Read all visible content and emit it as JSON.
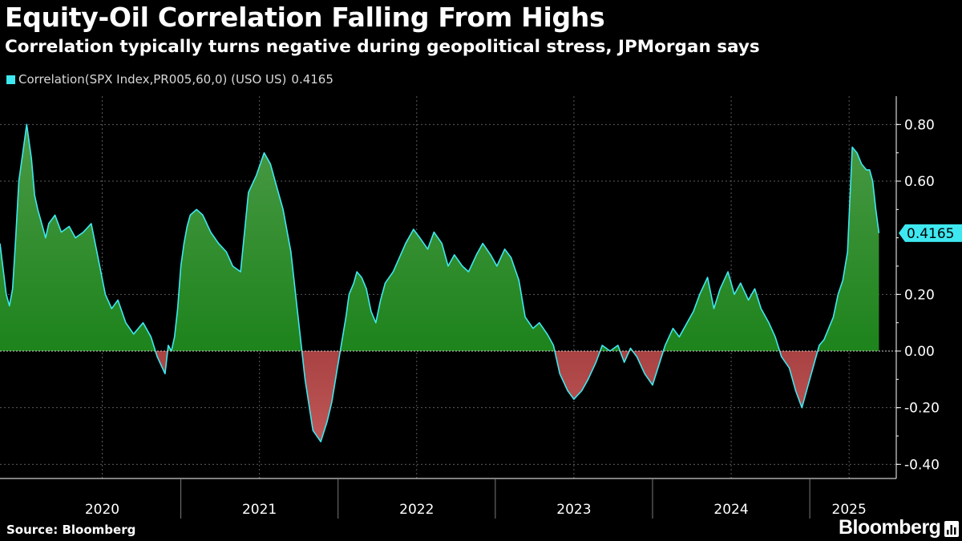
{
  "title": "Equity-Oil Correlation Falling From Highs",
  "subtitle": "Correlation typically turns negative during geopolitical stress, JPMorgan says",
  "legend": {
    "label": "Correlation(SPX Index,PR005,60,0) (USO US)",
    "value": "0.4165"
  },
  "source": "Source: Bloomberg",
  "brand": "Bloomberg",
  "colors": {
    "line": "#3ee8f0",
    "positive_fill_top": "#4b9a46",
    "positive_fill_bottom": "#0b7a0b",
    "negative_fill_top": "#6e0a0a",
    "negative_fill_bottom": "#c05858",
    "grid": "#5a5a5a",
    "axis": "#ffffff"
  },
  "chart_data": {
    "type": "area",
    "title": "Equity-Oil Correlation Falling From Highs",
    "series_name": "Correlation(SPX Index,PR005,60,0) (USO US)",
    "last_value": 0.4165,
    "last_value_label": "0.4165",
    "xlim": [
      2019.85,
      2025.55
    ],
    "ylim": [
      -0.45,
      0.9
    ],
    "x_ticks": [
      {
        "value": 2020.5,
        "label": "2020"
      },
      {
        "value": 2021.5,
        "label": "2021"
      },
      {
        "value": 2022.5,
        "label": "2022"
      },
      {
        "value": 2023.5,
        "label": "2023"
      },
      {
        "value": 2024.5,
        "label": "2024"
      },
      {
        "value": 2025.25,
        "label": "2025"
      }
    ],
    "x_dividers": [
      2021.0,
      2022.0,
      2023.0,
      2024.0,
      2025.0
    ],
    "y_ticks": [
      {
        "value": 0.8,
        "label": "0.80"
      },
      {
        "value": 0.6,
        "label": "0.60"
      },
      {
        "value": 0.2,
        "label": "0.20"
      },
      {
        "value": 0.0,
        "label": "0.00"
      },
      {
        "value": -0.2,
        "label": "-0.20"
      },
      {
        "value": -0.4,
        "label": "-0.40"
      }
    ],
    "grid": true,
    "x": [
      2019.85,
      2019.89,
      2019.91,
      2019.93,
      2019.95,
      2019.97,
      2020.0,
      2020.02,
      2020.05,
      2020.07,
      2020.09,
      2020.12,
      2020.14,
      2020.16,
      2020.2,
      2020.24,
      2020.29,
      2020.33,
      2020.38,
      2020.43,
      2020.47,
      2020.52,
      2020.56,
      2020.6,
      2020.65,
      2020.7,
      2020.76,
      2020.81,
      2020.85,
      2020.9,
      2020.92,
      2020.94,
      2020.96,
      2020.98,
      2021.0,
      2021.02,
      2021.04,
      2021.06,
      2021.1,
      2021.14,
      2021.19,
      2021.24,
      2021.29,
      2021.33,
      2021.38,
      2021.43,
      2021.48,
      2021.53,
      2021.57,
      2021.61,
      2021.65,
      2021.7,
      2021.74,
      2021.79,
      2021.84,
      2021.89,
      2021.93,
      2021.96,
      2021.99,
      2022.02,
      2022.05,
      2022.07,
      2022.1,
      2022.12,
      2022.15,
      2022.18,
      2022.21,
      2022.24,
      2022.27,
      2022.3,
      2022.35,
      2022.39,
      2022.43,
      2022.48,
      2022.52,
      2022.57,
      2022.61,
      2022.66,
      2022.7,
      2022.74,
      2022.79,
      2022.83,
      2022.88,
      2022.92,
      2022.97,
      2023.01,
      2023.06,
      2023.1,
      2023.15,
      2023.19,
      2023.24,
      2023.28,
      2023.33,
      2023.37,
      2023.41,
      2023.46,
      2023.5,
      2023.55,
      2023.59,
      2023.64,
      2023.68,
      2023.73,
      2023.78,
      2023.82,
      2023.86,
      2023.9,
      2023.95,
      2024.0,
      2024.04,
      2024.08,
      2024.13,
      2024.17,
      2024.22,
      2024.26,
      2024.3,
      2024.35,
      2024.39,
      2024.43,
      2024.48,
      2024.52,
      2024.56,
      2024.61,
      2024.65,
      2024.69,
      2024.74,
      2024.78,
      2024.82,
      2024.87,
      2024.91,
      2024.95,
      2025.0,
      2025.03,
      2025.06,
      2025.09,
      2025.12,
      2025.15,
      2025.18,
      2025.21,
      2025.24,
      2025.27,
      2025.3,
      2025.33,
      2025.36,
      2025.38,
      2025.4,
      2025.42,
      2025.44
    ],
    "y": [
      0.38,
      0.2,
      0.16,
      0.22,
      0.4,
      0.6,
      0.72,
      0.8,
      0.68,
      0.55,
      0.5,
      0.44,
      0.4,
      0.45,
      0.48,
      0.42,
      0.44,
      0.4,
      0.42,
      0.45,
      0.34,
      0.2,
      0.15,
      0.18,
      0.1,
      0.06,
      0.1,
      0.05,
      -0.02,
      -0.08,
      0.02,
      0.0,
      0.05,
      0.15,
      0.3,
      0.38,
      0.44,
      0.48,
      0.5,
      0.48,
      0.42,
      0.38,
      0.35,
      0.3,
      0.28,
      0.56,
      0.62,
      0.7,
      0.66,
      0.58,
      0.5,
      0.35,
      0.15,
      -0.1,
      -0.28,
      -0.32,
      -0.25,
      -0.18,
      -0.08,
      0.02,
      0.12,
      0.2,
      0.24,
      0.28,
      0.26,
      0.22,
      0.14,
      0.1,
      0.18,
      0.24,
      0.28,
      0.33,
      0.38,
      0.43,
      0.4,
      0.36,
      0.42,
      0.38,
      0.3,
      0.34,
      0.3,
      0.28,
      0.34,
      0.38,
      0.34,
      0.3,
      0.36,
      0.33,
      0.25,
      0.12,
      0.08,
      0.1,
      0.06,
      0.02,
      -0.08,
      -0.14,
      -0.17,
      -0.14,
      -0.1,
      -0.04,
      0.02,
      0.0,
      0.02,
      -0.04,
      0.01,
      -0.02,
      -0.08,
      -0.12,
      -0.05,
      0.02,
      0.08,
      0.05,
      0.1,
      0.14,
      0.2,
      0.26,
      0.15,
      0.22,
      0.28,
      0.2,
      0.24,
      0.18,
      0.22,
      0.15,
      0.1,
      0.05,
      -0.02,
      -0.06,
      -0.14,
      -0.2,
      -0.1,
      -0.04,
      0.02,
      0.04,
      0.08,
      0.12,
      0.2,
      0.25,
      0.35,
      0.72,
      0.7,
      0.66,
      0.64,
      0.64,
      0.6,
      0.5,
      0.4165
    ]
  }
}
